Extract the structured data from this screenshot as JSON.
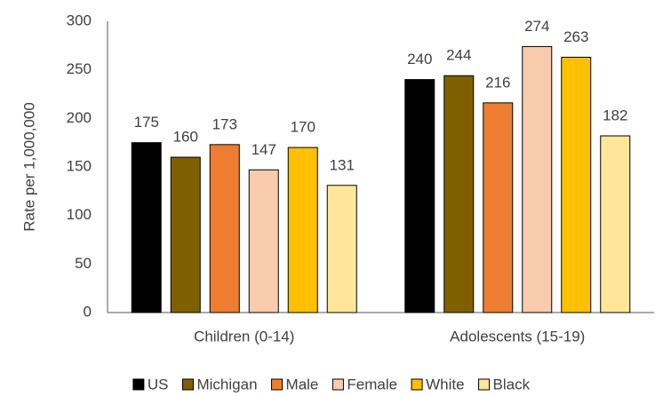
{
  "chart_data": {
    "type": "bar",
    "y_label": "Rate per 1,000,000",
    "categories": [
      "Children (0-14)",
      "Adolescents (15-19)"
    ],
    "series": [
      {
        "name": "US",
        "color": "#000000",
        "values": [
          175,
          240
        ]
      },
      {
        "name": "Michigan",
        "color": "#7f6000",
        "values": [
          160,
          244
        ]
      },
      {
        "name": "Male",
        "color": "#ed7d31",
        "values": [
          173,
          216
        ]
      },
      {
        "name": "Female",
        "color": "#f8cbad",
        "values": [
          147,
          274
        ]
      },
      {
        "name": "White",
        "color": "#ffc000",
        "values": [
          170,
          263
        ]
      },
      {
        "name": "Black",
        "color": "#ffe699",
        "values": [
          131,
          182
        ]
      }
    ],
    "ylim": [
      0,
      300
    ],
    "yticks": [
      0,
      50,
      100,
      150,
      200,
      250,
      300
    ],
    "grid": false,
    "legend": "bottom"
  }
}
